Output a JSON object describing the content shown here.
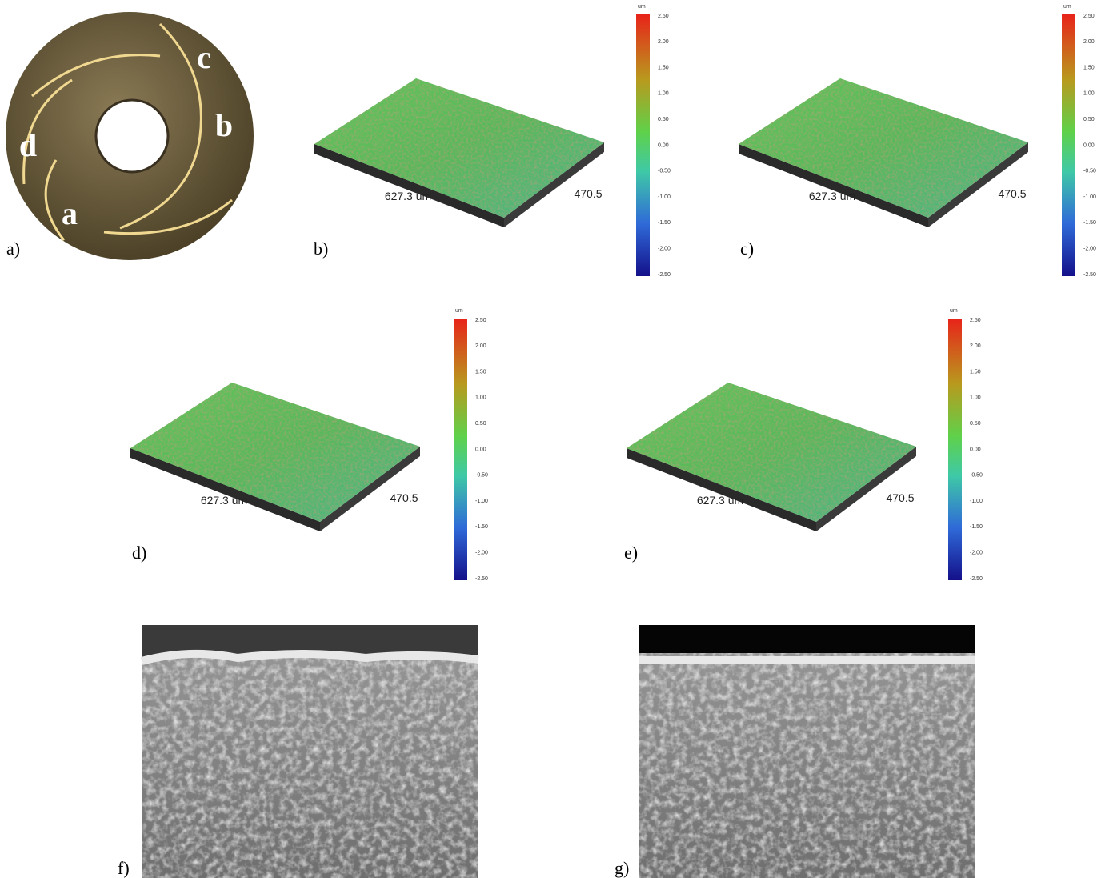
{
  "disk": {
    "panel_label": "a)",
    "labels": [
      "c",
      "b",
      "d",
      "a"
    ]
  },
  "surfaces": [
    {
      "panel_label": "b)",
      "x_dim": "627.3 um",
      "y_dim": "470.5",
      "colorbar": {
        "unit": "um",
        "ticks": [
          "2.50",
          "2.00",
          "1.50",
          "1.00",
          "0.50",
          "0.00",
          "-0.50",
          "-1.00",
          "-1.50",
          "-2.00",
          "-2.50"
        ]
      }
    },
    {
      "panel_label": "c)",
      "x_dim": "627.3 um",
      "y_dim": "470.5",
      "colorbar": {
        "unit": "um",
        "ticks": [
          "2.50",
          "2.00",
          "1.50",
          "1.00",
          "0.50",
          "0.00",
          "-0.50",
          "-1.00",
          "-1.50",
          "-2.00",
          "-2.50"
        ]
      }
    },
    {
      "panel_label": "d)",
      "x_dim": "627.3 um",
      "y_dim": "470.5",
      "colorbar": {
        "unit": "um",
        "ticks": [
          "2.50",
          "2.00",
          "1.50",
          "1.00",
          "0.50",
          "0.00",
          "-0.50",
          "-1.00",
          "-1.50",
          "-2.00",
          "-2.50"
        ]
      }
    },
    {
      "panel_label": "e)",
      "x_dim": "627.3 um",
      "y_dim": "470.5",
      "colorbar": {
        "unit": "um",
        "ticks": [
          "2.50",
          "2.00",
          "1.50",
          "1.00",
          "0.50",
          "0.00",
          "-0.50",
          "-1.00",
          "-1.50",
          "-2.00",
          "-2.50"
        ]
      }
    }
  ],
  "sem": [
    {
      "panel_label": "f)"
    },
    {
      "panel_label": "g)"
    }
  ]
}
